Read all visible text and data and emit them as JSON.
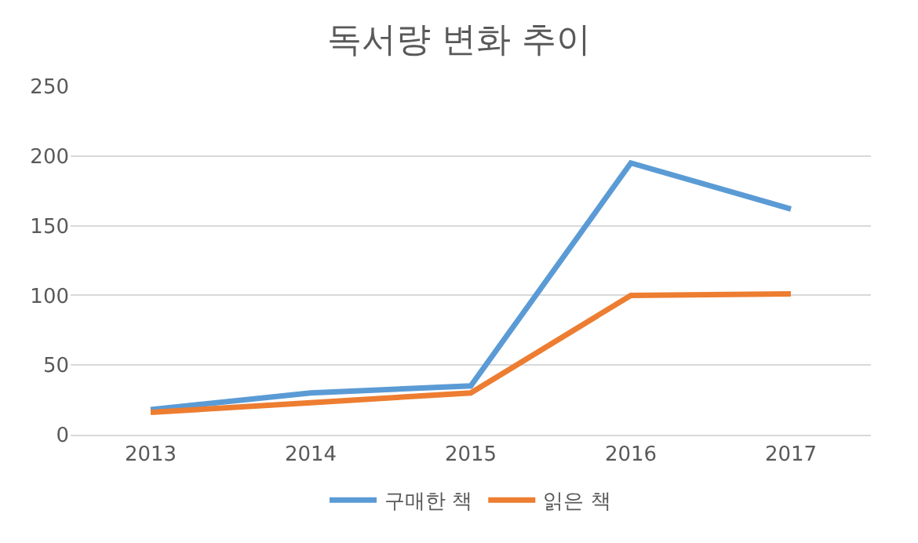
{
  "chart_data": {
    "type": "line",
    "title": "독서량 변화 추이",
    "categories": [
      "2013",
      "2014",
      "2015",
      "2016",
      "2017"
    ],
    "series": [
      {
        "name": "구매한 책",
        "color": "#5b9bd5",
        "values": [
          18,
          30,
          35,
          195,
          162
        ]
      },
      {
        "name": "읽은 책",
        "color": "#ed7d31",
        "values": [
          16,
          23,
          30,
          100,
          101
        ]
      }
    ],
    "ylim": [
      0,
      250
    ],
    "yticks": [
      0,
      50,
      100,
      150,
      200,
      250
    ],
    "grid": "y",
    "legend": "bottom",
    "marker": "none",
    "line_style": "solid"
  }
}
